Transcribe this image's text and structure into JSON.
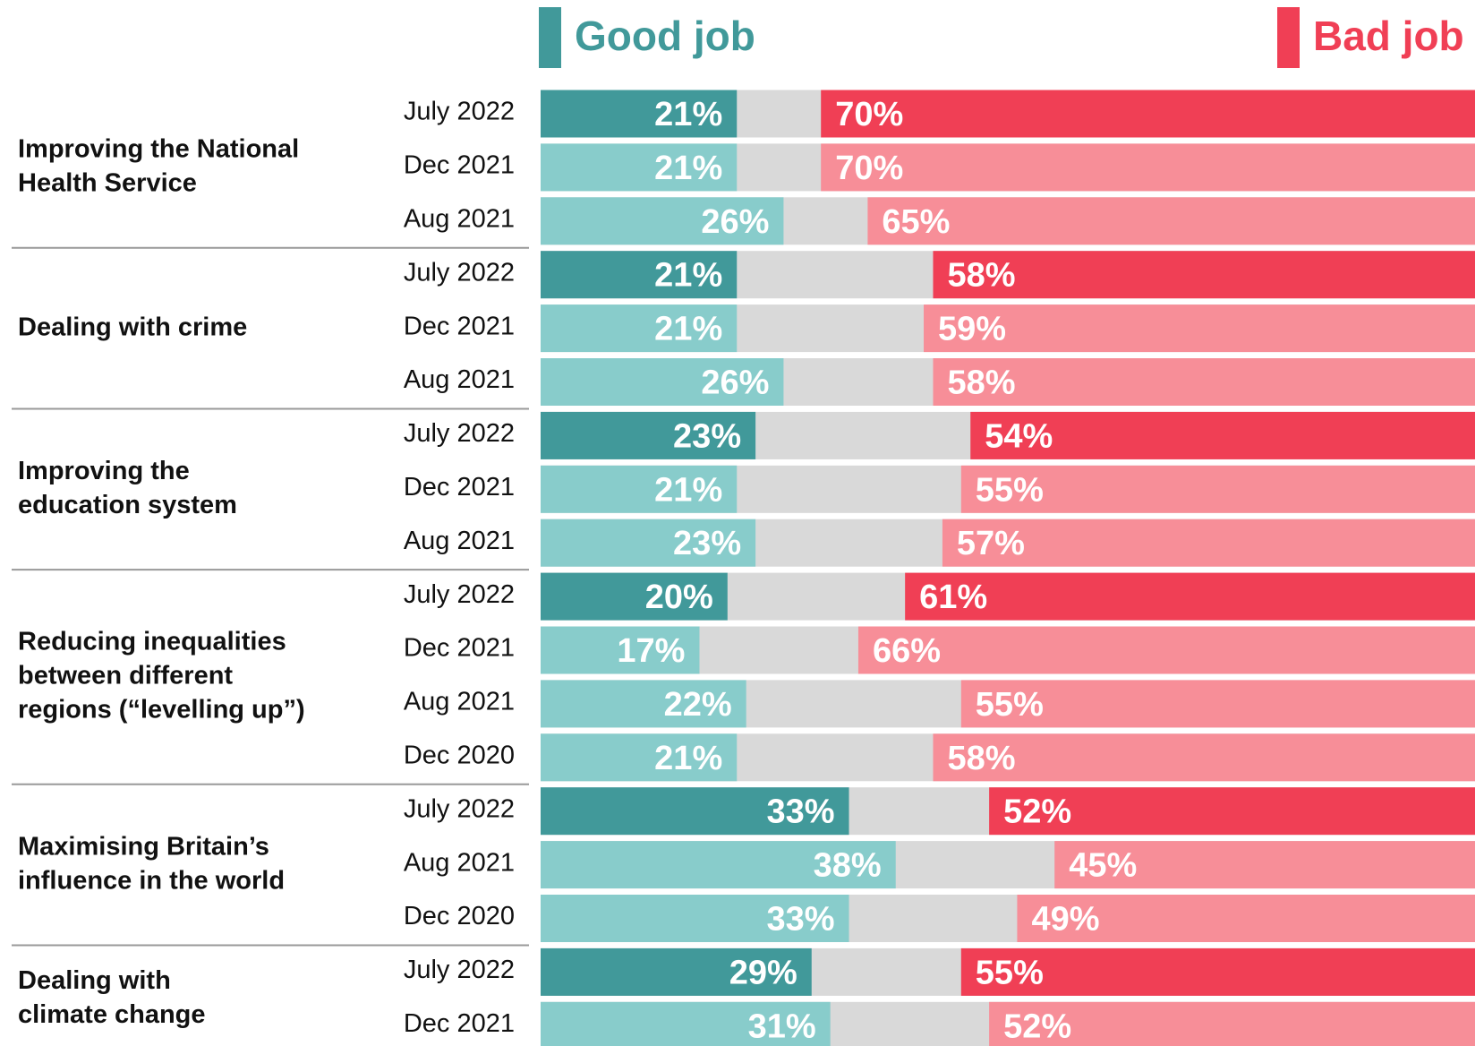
{
  "chart_data": {
    "type": "diverging_bar",
    "series": [
      {
        "name": "Good job",
        "color": "#41999a",
        "color_earlier": "#88cccb"
      },
      {
        "name": "Bad job",
        "color": "#f03f55",
        "color_earlier": "#f78e98"
      }
    ],
    "background_color": "#d9d9d9",
    "xlim": [
      0,
      100
    ],
    "groups": [
      {
        "label_lines": [
          "Improving the National",
          "Health Service"
        ],
        "categories": [
          "July 2022",
          "Dec 2021",
          "Aug 2021"
        ],
        "good": [
          21,
          21,
          26
        ],
        "good_labels": [
          "21%",
          "21%",
          "26%"
        ],
        "bad": [
          70,
          70,
          65
        ],
        "bad_labels": [
          "70%",
          "70%",
          "65%"
        ]
      },
      {
        "label_lines": [
          "Dealing with crime"
        ],
        "categories": [
          "July 2022",
          "Dec 2021",
          "Aug 2021"
        ],
        "good": [
          21,
          21,
          26
        ],
        "good_labels": [
          "21%",
          "21%",
          "26%"
        ],
        "bad": [
          58,
          59,
          58
        ],
        "bad_labels": [
          "58%",
          "59%",
          "58%"
        ]
      },
      {
        "label_lines": [
          "Improving the",
          "education system"
        ],
        "categories": [
          "July 2022",
          "Dec 2021",
          "Aug 2021"
        ],
        "good": [
          23,
          21,
          23
        ],
        "good_labels": [
          "23%",
          "21%",
          "23%"
        ],
        "bad": [
          54,
          55,
          57
        ],
        "bad_labels": [
          "54%",
          "55%",
          "57%"
        ]
      },
      {
        "label_lines": [
          "Reducing inequalities",
          "between different",
          "regions (“levelling up”)"
        ],
        "categories": [
          "July 2022",
          "Dec 2021",
          "Aug 2021",
          "Dec 2020"
        ],
        "good": [
          20,
          17,
          22,
          21
        ],
        "good_labels": [
          "20%",
          "17%",
          "22%",
          "21%"
        ],
        "bad": [
          61,
          66,
          55,
          58
        ],
        "bad_labels": [
          "61%",
          "66%",
          "55%",
          "58%"
        ]
      },
      {
        "label_lines": [
          "Maximising Britain’s",
          "influence in the world"
        ],
        "categories": [
          "July 2022",
          "Aug 2021",
          "Dec 2020"
        ],
        "good": [
          33,
          38,
          33
        ],
        "good_labels": [
          "33%",
          "38%",
          "33%"
        ],
        "bad": [
          52,
          45,
          49
        ],
        "bad_labels": [
          "52%",
          "45%",
          "49%"
        ]
      },
      {
        "label_lines": [
          "Dealing with",
          "climate change"
        ],
        "categories": [
          "July 2022",
          "Dec 2021"
        ],
        "good": [
          29,
          31
        ],
        "good_labels": [
          "29%",
          "31%"
        ],
        "bad": [
          55,
          52
        ],
        "bad_labels": [
          "55%",
          "52%"
        ]
      }
    ]
  }
}
